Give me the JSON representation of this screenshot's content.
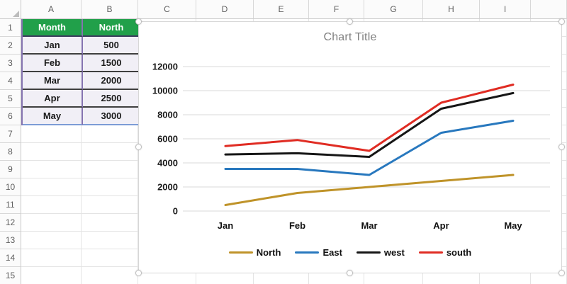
{
  "sheet": {
    "column_headers": [
      "A",
      "B",
      "C",
      "D",
      "E",
      "F",
      "G",
      "H",
      "I"
    ],
    "row_headers": [
      "1",
      "2",
      "3",
      "4",
      "5",
      "6",
      "7",
      "8",
      "9",
      "10",
      "11",
      "12",
      "13",
      "14",
      "15"
    ],
    "table": {
      "headers": [
        "Month",
        "North"
      ],
      "rows": [
        [
          "Jan",
          "500"
        ],
        [
          "Feb",
          "1500"
        ],
        [
          "Mar",
          "2000"
        ],
        [
          "Apr",
          "2500"
        ],
        [
          "May",
          "3000"
        ]
      ]
    }
  },
  "colors": {
    "table_header_bg": "#21A04A",
    "table_cell_bg": "#F1EFF6",
    "selection_border": "#8573B0",
    "chart_title_color": "#808080",
    "chart_gridline": "#DADADA"
  },
  "chart_data": {
    "type": "line",
    "title": "Chart Title",
    "categories": [
      "Jan",
      "Feb",
      "Mar",
      "Apr",
      "May"
    ],
    "series": [
      {
        "name": "North",
        "color": "#BF9329",
        "values": [
          500,
          1500,
          2000,
          2500,
          3000
        ]
      },
      {
        "name": "East",
        "color": "#2878BE",
        "values": [
          3500,
          3500,
          3000,
          6500,
          7500
        ]
      },
      {
        "name": "west",
        "color": "#161616",
        "values": [
          4700,
          4800,
          4500,
          8500,
          9800
        ]
      },
      {
        "name": "south",
        "color": "#E02C23",
        "values": [
          5400,
          5900,
          5000,
          9000,
          10500
        ]
      }
    ],
    "ylim": [
      0,
      12000
    ],
    "yticks": [
      0,
      2000,
      4000,
      6000,
      8000,
      10000,
      12000
    ],
    "grid": true,
    "legend_position": "bottom"
  }
}
